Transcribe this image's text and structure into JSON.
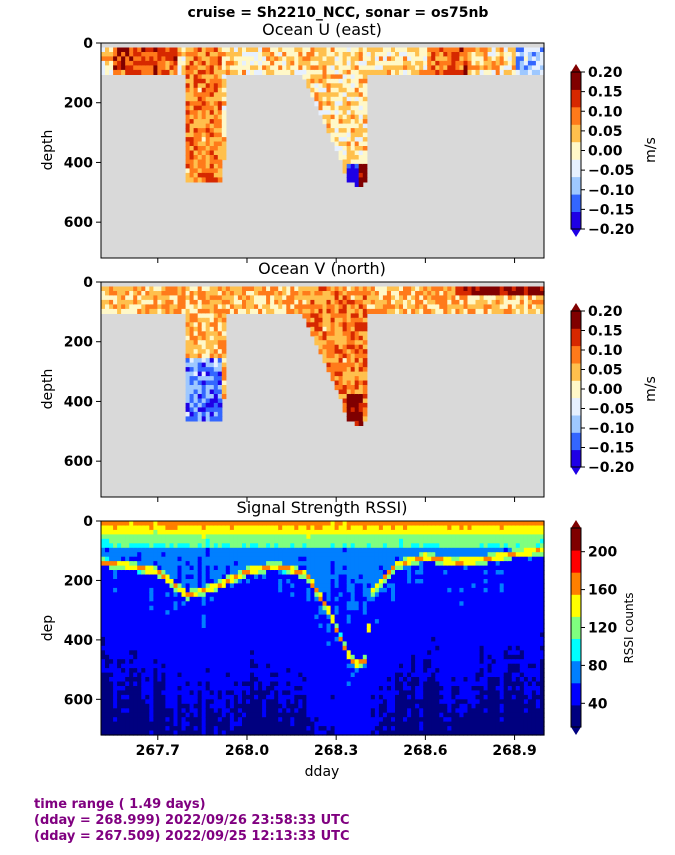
{
  "suptitle": "cruise = Sh2210_NCC,  sonar = os75nb",
  "xlabel": "dday",
  "x_ticks": [
    "267.7",
    "268.0",
    "268.3",
    "268.6",
    "268.9"
  ],
  "x_tick_values": [
    267.7,
    268.0,
    268.3,
    268.6,
    268.9
  ],
  "xlim": [
    267.509,
    268.999
  ],
  "footer": {
    "line1": "time range ( 1.49 days)",
    "line2": "(dday = 268.999) 2022/09/26 23:58:33 UTC",
    "line3": "(dday = 267.509) 2022/09/25 12:13:33 UTC"
  },
  "colors": {
    "nodata": "#d9d9d9",
    "diverging": [
      "#1f00e6",
      "#3366ff",
      "#9ec8ff",
      "#e6f0ff",
      "#fff8c8",
      "#ffc04d",
      "#ff7a1a",
      "#d62800",
      "#800000"
    ],
    "jet": [
      "#00007f",
      "#0000ff",
      "#007fff",
      "#00ffff",
      "#7fff7f",
      "#ffff00",
      "#ff7f00",
      "#ff0000",
      "#7f0000"
    ]
  },
  "chart_data": [
    {
      "type": "heatmap",
      "title": "Ocean U (east)",
      "ylabel": "depth",
      "ylim": [
        720,
        0
      ],
      "y_ticks": [
        "0",
        "200",
        "400",
        "600"
      ],
      "y_tick_values": [
        0,
        200,
        400,
        600
      ],
      "colorbar": {
        "label": "m/s",
        "ticks": [
          "0.20",
          "0.15",
          "0.10",
          "0.05",
          "0.00",
          "−0.05",
          "−0.10",
          "−0.15",
          "−0.20"
        ],
        "range": [
          -0.2,
          0.2
        ]
      },
      "bottom_depth_profile": {
        "dday": [
          267.509,
          267.79,
          267.8,
          267.92,
          267.93,
          268.18,
          268.28,
          268.34,
          268.37,
          268.4,
          268.41,
          268.999
        ],
        "depth": [
          100,
          100,
          460,
          460,
          100,
          100,
          310,
          460,
          480,
          470,
          100,
          100
        ]
      }
    },
    {
      "type": "heatmap",
      "title": "Ocean V (north)",
      "ylabel": "depth",
      "ylim": [
        720,
        0
      ],
      "y_ticks": [
        "0",
        "200",
        "400",
        "600"
      ],
      "y_tick_values": [
        0,
        200,
        400,
        600
      ],
      "colorbar": {
        "label": "m/s",
        "ticks": [
          "0.20",
          "0.15",
          "0.10",
          "0.05",
          "0.00",
          "−0.05",
          "−0.10",
          "−0.15",
          "−0.20"
        ],
        "range": [
          -0.2,
          0.2
        ]
      },
      "bottom_depth_profile": {
        "dday": [
          267.509,
          267.79,
          267.8,
          267.92,
          267.93,
          268.18,
          268.28,
          268.34,
          268.37,
          268.4,
          268.41,
          268.999
        ],
        "depth": [
          100,
          100,
          460,
          460,
          100,
          100,
          310,
          460,
          480,
          470,
          100,
          100
        ]
      }
    },
    {
      "type": "heatmap",
      "title": "Signal Strength RSSI)",
      "ylabel": "dep",
      "ylim": [
        720,
        0
      ],
      "y_ticks": [
        "0",
        "200",
        "400",
        "600"
      ],
      "y_tick_values": [
        0,
        200,
        400,
        600
      ],
      "colorbar": {
        "label": "RSSI counts",
        "ticks": [
          "200",
          "160",
          "120",
          "80",
          "40"
        ],
        "tick_values": [
          200,
          160,
          120,
          80,
          40
        ],
        "range": [
          15,
          225
        ]
      },
      "bottom_echo": {
        "dday": [
          267.509,
          267.6,
          267.7,
          267.8,
          267.9,
          268.0,
          268.1,
          268.2,
          268.28,
          268.32,
          268.36,
          268.4,
          268.42,
          268.5,
          268.6,
          268.7,
          268.8,
          268.9,
          268.999
        ],
        "depth": [
          140,
          150,
          170,
          250,
          220,
          170,
          150,
          180,
          310,
          410,
          480,
          470,
          240,
          150,
          120,
          140,
          130,
          110,
          100
        ]
      }
    }
  ]
}
